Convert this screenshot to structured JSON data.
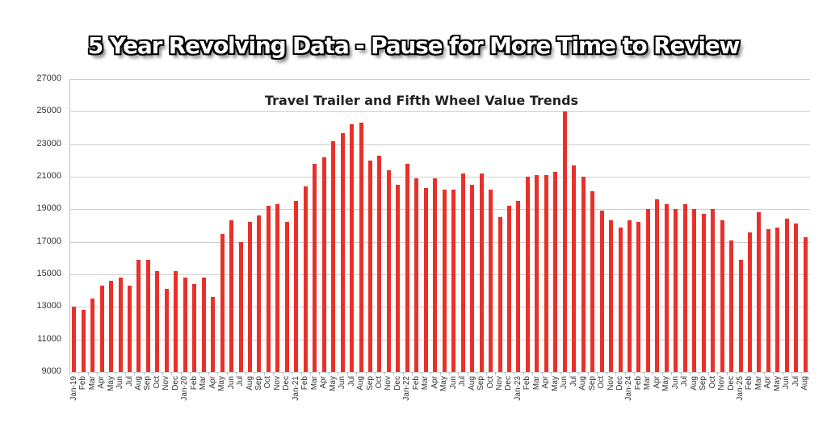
{
  "banner": {
    "text": "5 Year Revolving Data - Pause for More Time to Review"
  },
  "chart_data": {
    "type": "bar",
    "title": "Travel Trailer and Fifth Wheel Value Trends",
    "xlabel": "",
    "ylabel": "",
    "ylim": [
      9000,
      27000
    ],
    "yticks": [
      9000,
      11000,
      13000,
      15000,
      17000,
      19000,
      21000,
      23000,
      25000,
      27000
    ],
    "grid": true,
    "legend": null,
    "bar_color": "#e8312a",
    "categories": [
      "Jan-19",
      "Feb",
      "Mar",
      "Apr",
      "May",
      "Jun",
      "Jul",
      "Aug",
      "Sep",
      "Oct",
      "Nov",
      "Dec",
      "Jan-20",
      "Feb",
      "Mar",
      "Apr",
      "May",
      "Jun",
      "Jul",
      "Aug",
      "Sep",
      "Oct",
      "Nov",
      "Dec",
      "Jan-21",
      "Feb",
      "Mar",
      "Apr",
      "May",
      "Jun",
      "Jul",
      "Aug",
      "Sep",
      "Oct",
      "Nov",
      "Dec",
      "Jan-22",
      "Feb",
      "Mar",
      "Apr",
      "May",
      "Jun",
      "Jul",
      "Aug",
      "Sep",
      "Oct",
      "Nov",
      "Dec",
      "Jan-23",
      "Feb",
      "Mar",
      "Apr",
      "May",
      "Jun",
      "Jul",
      "Aug",
      "Sep",
      "Oct",
      "Nov",
      "Dec",
      "Jan-24",
      "Feb",
      "Mar",
      "Apr",
      "May",
      "Jun",
      "Jul",
      "Aug",
      "Sep",
      "Oct",
      "Nov",
      "Dec",
      "Jan-25",
      "Feb",
      "Mar",
      "Apr",
      "May",
      "Jun",
      "Jul",
      "Aug"
    ],
    "values": [
      13000,
      12800,
      13500,
      14300,
      14600,
      14800,
      14300,
      15900,
      15900,
      15200,
      14100,
      15200,
      14800,
      14400,
      14800,
      13600,
      17500,
      18300,
      17000,
      18200,
      18600,
      19200,
      19300,
      18200,
      19500,
      20400,
      21800,
      22200,
      23200,
      23700,
      24200,
      24300,
      22000,
      22300,
      21400,
      20500,
      21800,
      20900,
      20300,
      20900,
      20200,
      20200,
      21200,
      20500,
      21200,
      20200,
      18500,
      19200,
      19500,
      21000,
      21100,
      21100,
      21300,
      25000,
      21700,
      21000,
      20100,
      18900,
      18300,
      17900,
      18300,
      18200,
      19000,
      19600,
      19300,
      19000,
      19300,
      19000,
      18700,
      19000,
      18300,
      17100,
      15900,
      17600,
      18800,
      17800,
      17900,
      18400,
      18100,
      17300
    ]
  }
}
